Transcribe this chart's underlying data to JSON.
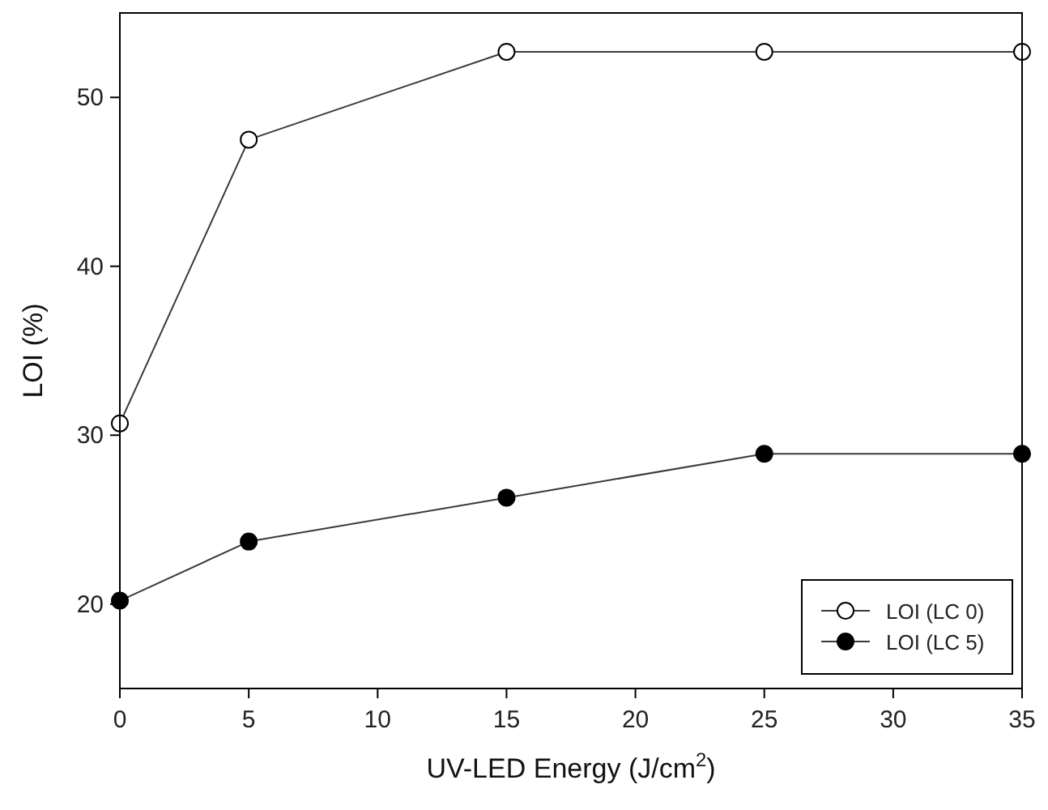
{
  "chart_data": {
    "type": "line",
    "xlabel": "UV-LED Energy (J/cm$^{2}$)",
    "ylabel": "LOI (%)",
    "x": [
      0,
      5,
      15,
      25,
      35
    ],
    "series": [
      {
        "name": "LOI (LC 0)",
        "color": "#ffffff",
        "values": [
          30.7,
          47.5,
          52.7,
          52.7,
          52.7
        ]
      },
      {
        "name": "LOI (LC 5)",
        "color": "#000000",
        "values": [
          20.2,
          23.7,
          26.3,
          28.9,
          28.9
        ]
      }
    ],
    "xlim": [
      0,
      35
    ],
    "xticks": [
      0,
      5,
      10,
      15,
      20,
      25,
      30,
      35
    ],
    "ylim": [
      15,
      55
    ],
    "yticks": [
      20,
      30,
      40,
      50
    ],
    "marker": "circle",
    "legend": "bottom right",
    "grid": false
  }
}
